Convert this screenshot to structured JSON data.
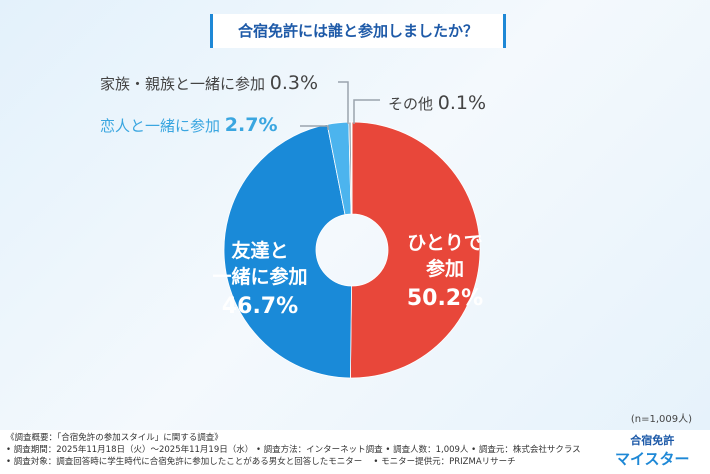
{
  "chart_data": {
    "type": "pie",
    "donut": true,
    "title": "合宿免許には誰と参加しましたか？",
    "slices": [
      {
        "label": "ひとりで参加",
        "value": 50.2,
        "value_label": "50.2%",
        "color": "#e8473a"
      },
      {
        "label": "友達と一緒に参加",
        "value": 46.7,
        "value_label": "46.7%",
        "color": "#1a8ad8"
      },
      {
        "label": "恋人と一緒に参加",
        "value": 2.7,
        "value_label": "2.7%",
        "color": "#4cb4ee"
      },
      {
        "label": "家族・親族と一緒に参加",
        "value": 0.3,
        "value_label": "0.3%",
        "color": "#9aa4ad"
      },
      {
        "label": "その他",
        "value": 0.1,
        "value_label": "0.1%",
        "color": "#cfd5da"
      }
    ],
    "inner_labels": {
      "solo_1": "ひとりで",
      "solo_2": "参加",
      "friends_1": "友達と",
      "friends_2": "一緒に参加"
    },
    "sample": "(n=1,009人)"
  },
  "footer": {
    "line1": "《調査概要：「合宿免許の参加スタイル」に関する調査》",
    "line2": "• 調査期間：2025年11月18日（火）～2025年11月19日（水） • 調査方法：インターネット調査 • 調査人数：1,009人 • 調査元：株式会社サクラス",
    "line3": "• 調査対象：調査回答時に学生時代に合宿免許に参加したことがある男女と回答したモニター　 • モニター提供元：PRIZMAリサーチ"
  },
  "logo": {
    "top": "合宿免許",
    "bottom": "マイスター"
  }
}
